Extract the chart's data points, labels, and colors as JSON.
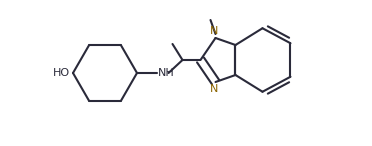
{
  "bg_color": "#ffffff",
  "bond_color": "#2a2a3a",
  "N_color": "#8B6400",
  "lw": 1.5,
  "figsize": [
    3.72,
    1.46
  ],
  "dpi": 100,
  "xlim": [
    0,
    37.2
  ],
  "ylim": [
    0,
    14.6
  ]
}
